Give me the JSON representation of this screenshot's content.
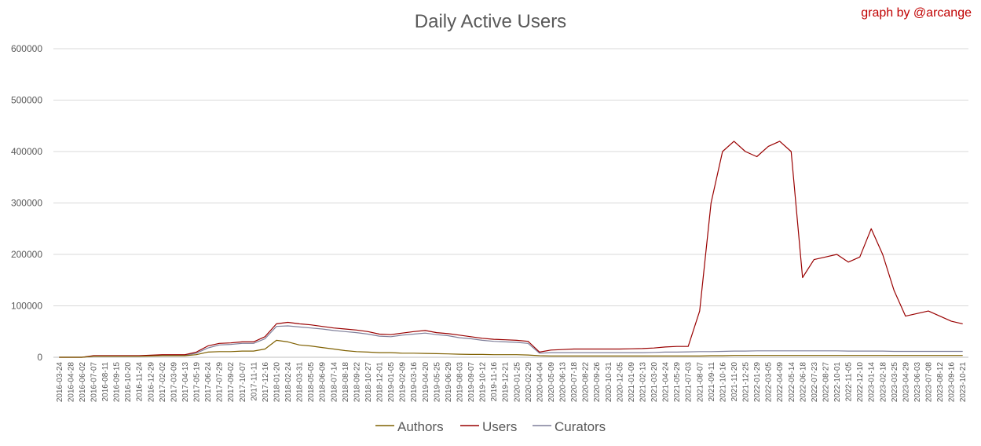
{
  "chart_data": {
    "type": "line",
    "title": "Daily Active Users",
    "annotation": "graph by @arcange",
    "xlabel": "",
    "ylabel": "",
    "ylim": [
      0,
      600000
    ],
    "yticks": [
      "0",
      "100000",
      "200000",
      "300000",
      "400000",
      "500000",
      "600000"
    ],
    "grid": true,
    "legend_position": "bottom",
    "x": [
      "2016-03-24",
      "2016-04-28",
      "2016-06-02",
      "2016-07-07",
      "2016-08-11",
      "2016-09-15",
      "2016-10-20",
      "2016-11-24",
      "2016-12-29",
      "2017-02-02",
      "2017-03-09",
      "2017-04-13",
      "2017-05-19",
      "2017-06-24",
      "2017-07-29",
      "2017-09-02",
      "2017-10-07",
      "2017-11-11",
      "2017-12-16",
      "2018-01-20",
      "2018-02-24",
      "2018-03-31",
      "2018-05-05",
      "2018-06-09",
      "2018-07-14",
      "2018-08-18",
      "2018-09-22",
      "2018-10-27",
      "2018-12-01",
      "2019-01-05",
      "2019-02-09",
      "2019-03-16",
      "2019-04-20",
      "2019-05-25",
      "2019-06-29",
      "2019-08-03",
      "2019-09-07",
      "2019-10-12",
      "2019-11-16",
      "2019-12-21",
      "2020-01-25",
      "2020-02-29",
      "2020-04-04",
      "2020-05-09",
      "2020-06-13",
      "2020-07-18",
      "2020-08-22",
      "2020-09-26",
      "2020-10-31",
      "2020-12-05",
      "2021-01-09",
      "2021-02-13",
      "2021-03-20",
      "2021-04-24",
      "2021-05-29",
      "2021-07-03",
      "2021-08-07",
      "2021-09-11",
      "2021-10-16",
      "2021-11-20",
      "2021-12-25",
      "2022-01-29",
      "2022-03-05",
      "2022-04-09",
      "2022-05-14",
      "2022-06-18",
      "2022-07-23",
      "2022-08-27",
      "2022-10-01",
      "2022-11-05",
      "2022-12-10",
      "2023-01-14",
      "2023-02-18",
      "2023-03-25",
      "2023-04-29",
      "2023-06-03",
      "2023-07-08",
      "2023-08-12",
      "2023-09-16",
      "2023-10-21"
    ],
    "x_tick_labels": [
      "2016-03-24",
      "2016-04-28",
      "2016-06-02",
      "2016-07-07",
      "2016-08-11",
      "2016-09-15",
      "2016-10-20",
      "2016-11-24",
      "2016-12-29",
      "2017-02-02",
      "2017-03-09",
      "2017-04-13",
      "2017-05-19",
      "2017-06-24",
      "2017-07-29",
      "2017-09-02",
      "2017-10-07",
      "2017-11-11",
      "2017-12-16",
      "2018-01-20",
      "2018-02-24",
      "2018-03-31",
      "2018-05-05",
      "2018-06-09",
      "2018-07-14",
      "2018-08-18",
      "2018-09-22",
      "2018-10-27",
      "2018-12-01",
      "2019-01-05",
      "2019-02-09",
      "2019-03-16",
      "2019-04-20",
      "2019-05-25",
      "2019-06-29",
      "2019-08-03",
      "2019-09-07",
      "2019-10-12",
      "2019-11-16",
      "2019-12-21",
      "2020-01-25",
      "2020-02-29",
      "2020-04-04",
      "2020-05-09",
      "2020-06-13",
      "2020-07-18",
      "2020-08-22",
      "2020-09-26",
      "2020-10-31",
      "2020-12-05",
      "2021-01-09",
      "2021-02-13",
      "2021-03-20",
      "2021-04-24",
      "2021-05-29",
      "2021-07-03",
      "2021-08-07",
      "2021-09-11",
      "2021-10-16",
      "2021-11-20",
      "2021-12-25",
      "2022-01-29",
      "2022-03-05",
      "2022-04-09",
      "2022-05-14",
      "2022-06-18",
      "2022-07-23",
      "2022-08-27",
      "2022-10-01",
      "2022-11-05",
      "2022-12-10",
      "2023-01-14",
      "2023-02-18",
      "2023-03-25",
      "2023-04-29",
      "2023-06-03",
      "2023-07-08",
      "2023-08-12",
      "2023-09-16",
      "2023-10-21"
    ],
    "series": [
      {
        "name": "Authors",
        "color": "#7f6000",
        "values": [
          0,
          0,
          0,
          2000,
          2000,
          2000,
          2000,
          2000,
          2500,
          3000,
          3000,
          3000,
          5000,
          10000,
          11000,
          11000,
          12000,
          12000,
          16000,
          33000,
          30000,
          24000,
          22000,
          19000,
          16000,
          13000,
          11000,
          10000,
          9000,
          9000,
          8000,
          8000,
          7500,
          7000,
          6500,
          6000,
          5500,
          5500,
          5000,
          5000,
          5000,
          4500,
          3000,
          2500,
          2500,
          2500,
          2500,
          2500,
          2500,
          2500,
          2500,
          2500,
          2500,
          2500,
          2500,
          2500,
          2500,
          3000,
          3000,
          3500,
          3500,
          3500,
          3500,
          3500,
          3500,
          3500,
          3500,
          3500,
          3500,
          3500,
          3500,
          3500,
          3500,
          3500,
          3500,
          3500,
          3500,
          3500,
          3500,
          3500
        ]
      },
      {
        "name": "Users",
        "color": "#990000",
        "values": [
          0,
          0,
          0,
          3000,
          3000,
          3000,
          3000,
          3000,
          4000,
          5000,
          5000,
          5000,
          10000,
          22000,
          27000,
          28000,
          30000,
          30000,
          40000,
          65000,
          68000,
          65000,
          63000,
          60000,
          57000,
          55000,
          53000,
          50000,
          45000,
          44000,
          47000,
          50000,
          52000,
          48000,
          46000,
          43000,
          40000,
          37000,
          35000,
          34000,
          33000,
          31000,
          10000,
          14000,
          15000,
          16000,
          16000,
          16000,
          16000,
          16000,
          16500,
          17000,
          18000,
          20000,
          21000,
          21000,
          90000,
          300000,
          400000,
          420000,
          400000,
          390000,
          410000,
          420000,
          400000,
          155000,
          190000,
          195000,
          200000,
          185000,
          195000,
          250000,
          200000,
          130000,
          80000,
          85000,
          90000,
          80000,
          70000,
          65000
        ]
      },
      {
        "name": "Curators",
        "color": "#7f7f9a",
        "values": [
          0,
          0,
          0,
          2500,
          2500,
          2500,
          2500,
          2500,
          3500,
          4000,
          4000,
          4000,
          8000,
          18000,
          24000,
          25000,
          27000,
          27000,
          36000,
          60000,
          61000,
          59000,
          57000,
          55000,
          52000,
          50000,
          48000,
          45000,
          41000,
          40000,
          43000,
          45000,
          47000,
          44000,
          42000,
          38000,
          36000,
          33000,
          31000,
          30000,
          29000,
          27000,
          8000,
          9000,
          9000,
          9000,
          9000,
          9000,
          9000,
          9000,
          9000,
          9000,
          9500,
          10000,
          10000,
          10500,
          11000,
          11000,
          11500,
          12000,
          12000,
          12500,
          12500,
          12500,
          12500,
          12500,
          12500,
          12500,
          12500,
          12000,
          12000,
          12000,
          12000,
          11500,
          11500,
          11500,
          11500,
          11500,
          11500,
          11500
        ]
      }
    ]
  }
}
